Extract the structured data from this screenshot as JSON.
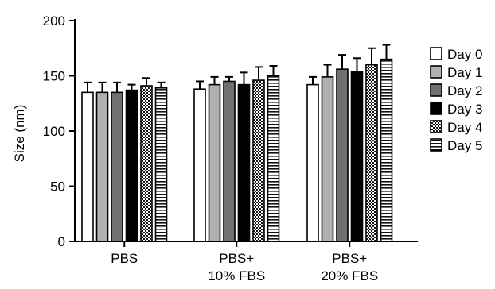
{
  "chart_data": {
    "type": "bar",
    "title": "",
    "xlabel": "",
    "ylabel": "Size (nm)",
    "ylim": [
      0,
      200
    ],
    "yticks": [
      0,
      50,
      100,
      150,
      200
    ],
    "grid": false,
    "legend_position": "right",
    "categories": [
      {
        "lines": [
          "PBS"
        ]
      },
      {
        "lines": [
          "PBS+",
          "10% FBS"
        ]
      },
      {
        "lines": [
          "PBS+",
          "20% FBS"
        ]
      }
    ],
    "series": [
      {
        "name": "Day 0",
        "pattern": "white",
        "values": [
          135,
          138,
          142
        ],
        "errors": [
          9,
          7,
          7
        ]
      },
      {
        "name": "Day 1",
        "pattern": "light-gray",
        "values": [
          135,
          142,
          149
        ],
        "errors": [
          9,
          7,
          11
        ]
      },
      {
        "name": "Day 2",
        "pattern": "dark-gray",
        "values": [
          135,
          145,
          156
        ],
        "errors": [
          9,
          4,
          13
        ]
      },
      {
        "name": "Day 3",
        "pattern": "black",
        "values": [
          137,
          142,
          154
        ],
        "errors": [
          5,
          11,
          12
        ]
      },
      {
        "name": "Day 4",
        "pattern": "checker",
        "values": [
          141,
          146,
          160
        ],
        "errors": [
          7,
          12,
          15
        ]
      },
      {
        "name": "Day 5",
        "pattern": "h-stripes",
        "values": [
          139,
          150,
          165
        ],
        "errors": [
          5,
          9,
          13
        ]
      }
    ]
  }
}
